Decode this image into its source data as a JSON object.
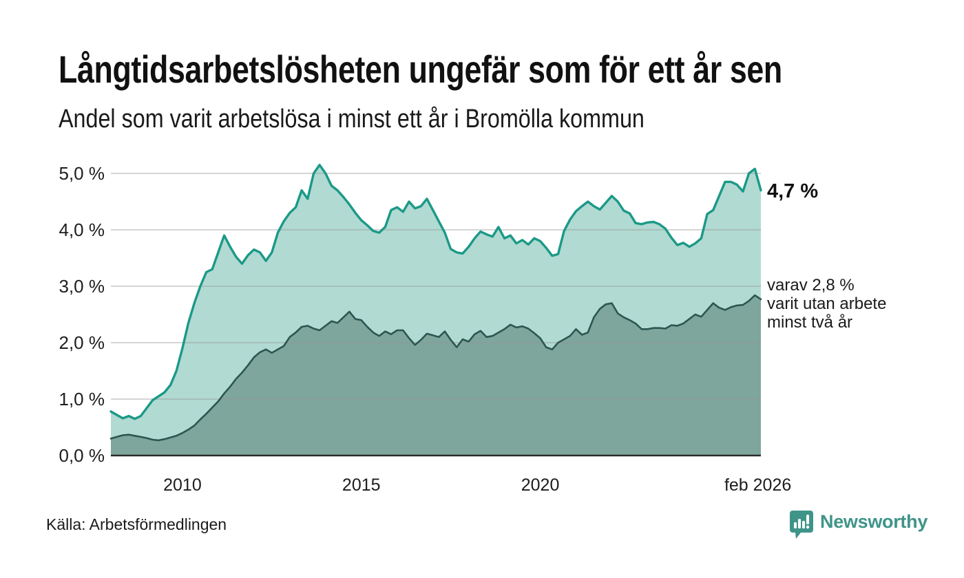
{
  "header": {
    "title": "Långtidsarbetslösheten ungefär som för ett år sen",
    "subtitle": "Andel som varit arbetslösa i minst ett år i Bromölla kommun"
  },
  "chart_data": {
    "type": "area",
    "title": "Långtidsarbetslösheten ungefär som för ett år sen",
    "subtitle": "Andel som varit arbetslösa i minst ett år i Bromölla kommun",
    "y_unit": "%",
    "ylim": [
      0,
      5.3
    ],
    "x_range": [
      2008.0,
      2026.167
    ],
    "grid": "horizontal",
    "y_ticks": [
      {
        "value": 5.0,
        "label": "5,0 %"
      },
      {
        "value": 4.0,
        "label": "4,0 %"
      },
      {
        "value": 3.0,
        "label": "3,0 %"
      },
      {
        "value": 2.0,
        "label": "2,0 %"
      },
      {
        "value": 1.0,
        "label": "1,0 %"
      },
      {
        "value": 0.0,
        "label": "0,0 %"
      }
    ],
    "x_ticks": [
      {
        "value": 2010.0,
        "label": "2010"
      },
      {
        "value": 2015.0,
        "label": "2015"
      },
      {
        "value": 2020.0,
        "label": "2020"
      },
      {
        "value": 2026.083,
        "label": "feb 2026"
      }
    ],
    "x": [
      2008.0,
      2008.167,
      2008.333,
      2008.5,
      2008.667,
      2008.833,
      2009.0,
      2009.167,
      2009.333,
      2009.5,
      2009.667,
      2009.833,
      2010.0,
      2010.167,
      2010.333,
      2010.5,
      2010.667,
      2010.833,
      2011.0,
      2011.167,
      2011.333,
      2011.5,
      2011.667,
      2011.833,
      2012.0,
      2012.167,
      2012.333,
      2012.5,
      2012.667,
      2012.833,
      2013.0,
      2013.167,
      2013.333,
      2013.5,
      2013.667,
      2013.833,
      2014.0,
      2014.167,
      2014.333,
      2014.5,
      2014.667,
      2014.833,
      2015.0,
      2015.167,
      2015.333,
      2015.5,
      2015.667,
      2015.833,
      2016.0,
      2016.167,
      2016.333,
      2016.5,
      2016.667,
      2016.833,
      2017.0,
      2017.167,
      2017.333,
      2017.5,
      2017.667,
      2017.833,
      2018.0,
      2018.167,
      2018.333,
      2018.5,
      2018.667,
      2018.833,
      2019.0,
      2019.167,
      2019.333,
      2019.5,
      2019.667,
      2019.833,
      2020.0,
      2020.167,
      2020.333,
      2020.5,
      2020.667,
      2020.833,
      2021.0,
      2021.167,
      2021.333,
      2021.5,
      2021.667,
      2021.833,
      2022.0,
      2022.167,
      2022.333,
      2022.5,
      2022.667,
      2022.833,
      2023.0,
      2023.167,
      2023.333,
      2023.5,
      2023.667,
      2023.833,
      2024.0,
      2024.167,
      2024.333,
      2024.5,
      2024.667,
      2024.833,
      2025.0,
      2025.167,
      2025.333,
      2025.5,
      2025.667,
      2025.833,
      2026.0,
      2026.167
    ],
    "series": [
      {
        "name": "Andel arbetslösa minst ett år",
        "color": "#1b9987",
        "fill": "#b1dad2",
        "end_value_label": "4,7 %",
        "values": [
          0.78,
          0.72,
          0.66,
          0.7,
          0.65,
          0.7,
          0.84,
          0.98,
          1.05,
          1.12,
          1.25,
          1.5,
          1.9,
          2.35,
          2.7,
          3.0,
          3.25,
          3.3,
          3.6,
          3.9,
          3.7,
          3.52,
          3.4,
          3.55,
          3.65,
          3.6,
          3.45,
          3.6,
          3.95,
          4.15,
          4.3,
          4.4,
          4.7,
          4.55,
          5.0,
          5.15,
          5.0,
          4.78,
          4.7,
          4.58,
          4.45,
          4.3,
          4.17,
          4.08,
          3.98,
          3.95,
          4.05,
          4.35,
          4.4,
          4.32,
          4.5,
          4.38,
          4.42,
          4.55,
          4.35,
          4.15,
          3.95,
          3.66,
          3.6,
          3.58,
          3.7,
          3.85,
          3.97,
          3.92,
          3.88,
          4.05,
          3.85,
          3.9,
          3.76,
          3.82,
          3.74,
          3.85,
          3.8,
          3.68,
          3.54,
          3.57,
          3.98,
          4.18,
          4.33,
          4.42,
          4.5,
          4.42,
          4.36,
          4.48,
          4.6,
          4.5,
          4.34,
          4.29,
          4.12,
          4.1,
          4.13,
          4.14,
          4.1,
          4.02,
          3.86,
          3.73,
          3.77,
          3.7,
          3.76,
          3.85,
          4.28,
          4.35,
          4.6,
          4.85,
          4.85,
          4.8,
          4.68,
          5.0,
          5.08,
          4.7
        ]
      },
      {
        "name": "varav utan arbete minst två år",
        "color": "#2a5750",
        "fill": "#7ea69d",
        "end_value_label": "varav 2,8 %",
        "values": [
          0.3,
          0.33,
          0.36,
          0.37,
          0.35,
          0.33,
          0.31,
          0.28,
          0.27,
          0.29,
          0.32,
          0.35,
          0.4,
          0.46,
          0.53,
          0.64,
          0.74,
          0.85,
          0.96,
          1.1,
          1.22,
          1.36,
          1.47,
          1.6,
          1.74,
          1.83,
          1.88,
          1.82,
          1.88,
          1.94,
          2.1,
          2.18,
          2.28,
          2.3,
          2.25,
          2.22,
          2.3,
          2.38,
          2.35,
          2.45,
          2.55,
          2.42,
          2.4,
          2.28,
          2.18,
          2.12,
          2.2,
          2.15,
          2.22,
          2.22,
          2.08,
          1.96,
          2.05,
          2.16,
          2.13,
          2.1,
          2.2,
          2.05,
          1.92,
          2.06,
          2.02,
          2.15,
          2.21,
          2.1,
          2.12,
          2.18,
          2.24,
          2.32,
          2.27,
          2.29,
          2.25,
          2.17,
          2.08,
          1.92,
          1.88,
          2.0,
          2.06,
          2.12,
          2.24,
          2.14,
          2.18,
          2.45,
          2.6,
          2.68,
          2.7,
          2.52,
          2.45,
          2.4,
          2.34,
          2.24,
          2.24,
          2.26,
          2.26,
          2.25,
          2.31,
          2.3,
          2.34,
          2.42,
          2.5,
          2.46,
          2.58,
          2.7,
          2.62,
          2.58,
          2.63,
          2.66,
          2.67,
          2.74,
          2.84,
          2.77
        ]
      }
    ],
    "annotations": {
      "end_label_primary": "4,7 %",
      "end_label_secondary_lines": [
        "varav 2,8 %",
        "varit utan arbete",
        "minst två år"
      ]
    }
  },
  "footer": {
    "source": "Källa: Arbetsförmedlingen",
    "brand": "Newsworthy"
  },
  "colors": {
    "line_primary": "#1b9987",
    "fill_primary": "#b1dad2",
    "line_secondary": "#2a5750",
    "fill_secondary": "#7ea69d",
    "gridline": "rgba(150,150,150,0.4)",
    "axis": "#2b2b2b",
    "brand_teal": "#3f9489",
    "text": "#1a1a1a",
    "background": "#ffffff"
  }
}
